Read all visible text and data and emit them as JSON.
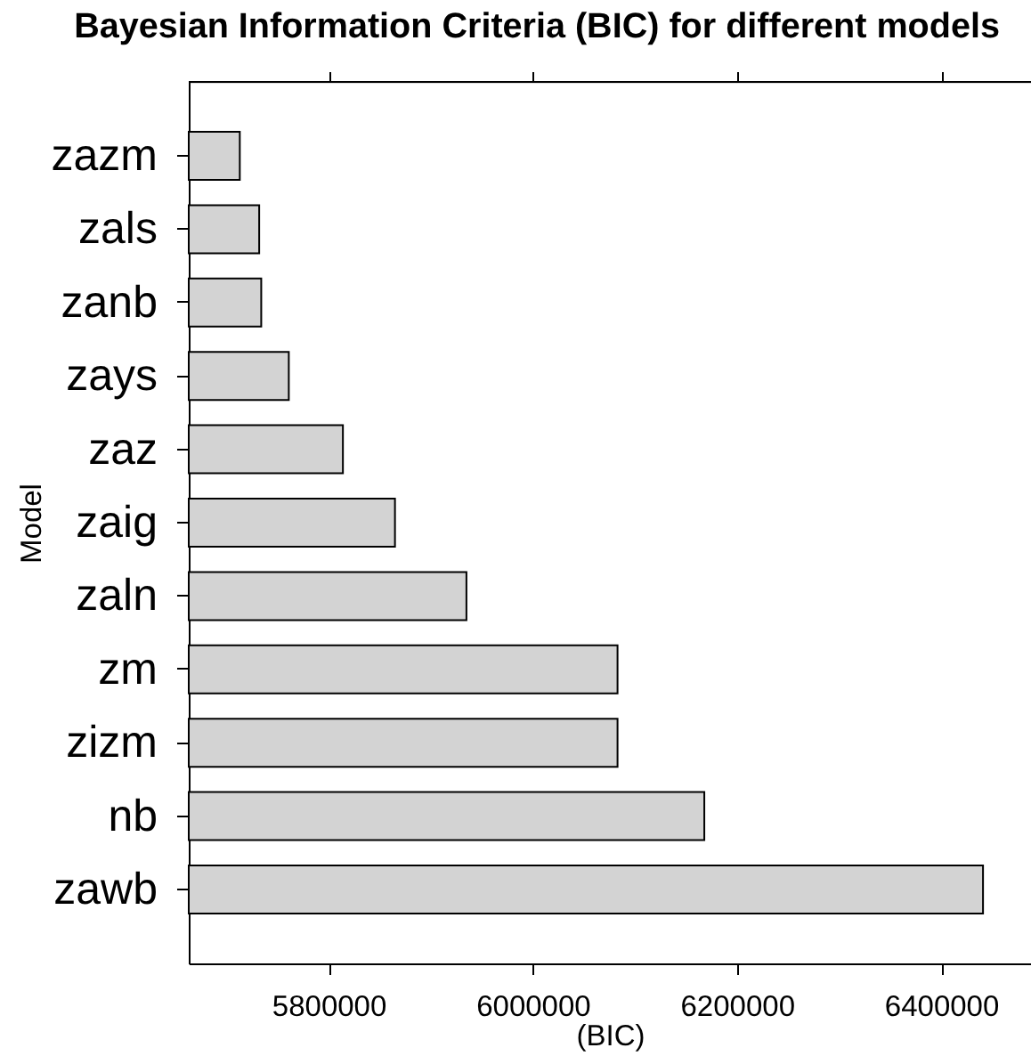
{
  "chart_data": {
    "type": "bar",
    "orientation": "horizontal",
    "title": "Bayesian Information Criteria (BIC) for different models",
    "xlabel": "(BIC)",
    "ylabel": "Model",
    "categories": [
      "zazm",
      "zals",
      "zanb",
      "zays",
      "zaz",
      "zaig",
      "zaln",
      "zm",
      "zizm",
      "nb",
      "zawb"
    ],
    "values": [
      5713000,
      5732000,
      5734000,
      5761000,
      5814000,
      5865000,
      5935000,
      6083000,
      6083000,
      6168000,
      6441000
    ],
    "color": "#d3d3d3",
    "xlim": [
      5663000,
      6488000
    ],
    "xticks": [
      5800000,
      6000000,
      6200000,
      6400000
    ]
  }
}
